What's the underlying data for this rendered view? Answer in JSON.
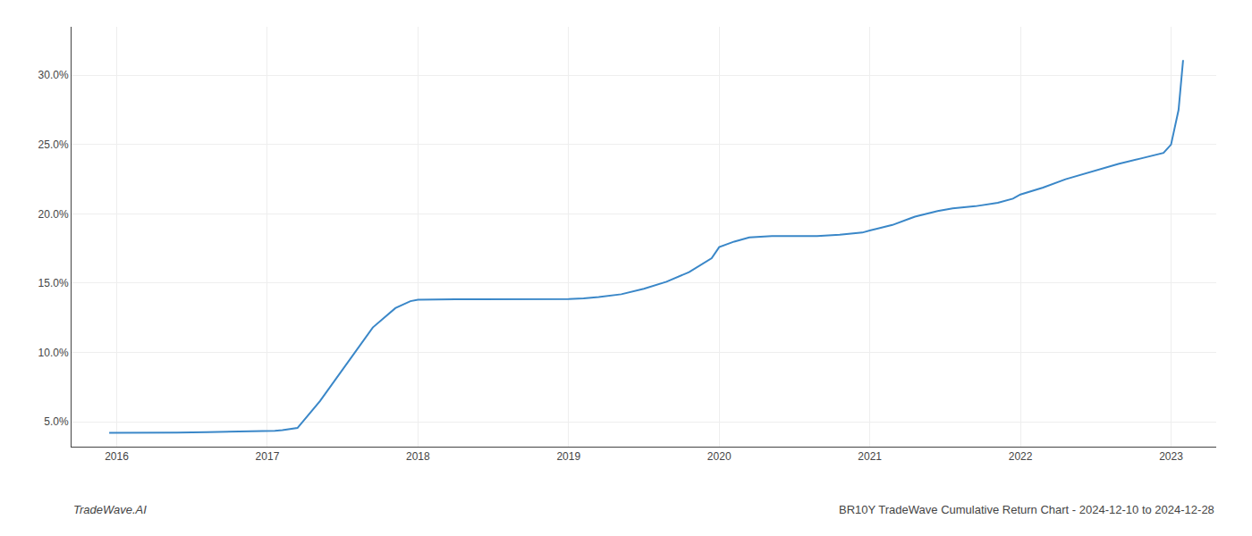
{
  "chart_data": {
    "type": "line",
    "title": "BR10Y TradeWave Cumulative Return Chart - 2024-12-10 to 2024-12-28",
    "annotations": [
      "TradeWave.AI"
    ],
    "x": [
      2015.95,
      2016.0,
      2016.1,
      2016.2,
      2016.4,
      2016.6,
      2016.8,
      2016.95,
      2017.0,
      2017.05,
      2017.1,
      2017.2,
      2017.35,
      2017.55,
      2017.7,
      2017.85,
      2017.95,
      2018.0,
      2018.1,
      2018.15,
      2018.25,
      2018.4,
      2018.6,
      2018.8,
      2018.95,
      2019.0,
      2019.1,
      2019.2,
      2019.35,
      2019.5,
      2019.65,
      2019.8,
      2019.95,
      2020.0,
      2020.1,
      2020.2,
      2020.35,
      2020.5,
      2020.65,
      2020.8,
      2020.95,
      2021.0,
      2021.15,
      2021.3,
      2021.45,
      2021.55,
      2021.7,
      2021.85,
      2021.95,
      2022.0,
      2022.15,
      2022.3,
      2022.5,
      2022.65,
      2022.8,
      2022.95,
      2023.0,
      2023.05,
      2023.08
    ],
    "values": [
      4.2,
      4.2,
      4.2,
      4.2,
      4.22,
      4.25,
      4.28,
      4.3,
      4.32,
      4.35,
      4.4,
      4.55,
      6.5,
      9.5,
      11.8,
      13.2,
      13.7,
      13.8,
      13.82,
      13.83,
      13.83,
      13.83,
      13.83,
      13.83,
      13.83,
      13.85,
      13.9,
      14.0,
      14.2,
      14.6,
      15.1,
      15.8,
      16.8,
      17.6,
      18.0,
      18.3,
      18.4,
      18.4,
      18.4,
      18.5,
      18.65,
      18.8,
      19.2,
      19.8,
      20.2,
      20.4,
      20.55,
      20.8,
      21.1,
      21.4,
      21.9,
      22.5,
      23.1,
      23.6,
      24.0,
      24.4,
      25.0,
      27.5,
      31.1
    ],
    "color": "#3a87c8",
    "xlim": [
      2015.7,
      2023.3
    ],
    "xticks": [
      2016,
      2017,
      2018,
      2019,
      2020,
      2021,
      2022,
      2023
    ],
    "ylim": [
      3.2,
      33.5
    ],
    "yticks": [
      {
        "value": 5.0,
        "label": "5.0%"
      },
      {
        "value": 10.0,
        "label": "10.0%"
      },
      {
        "value": 15.0,
        "label": "15.0%"
      },
      {
        "value": 20.0,
        "label": "20.0%"
      },
      {
        "value": 25.0,
        "label": "25.0%"
      },
      {
        "value": 30.0,
        "label": "30.0%"
      }
    ],
    "grid": true
  }
}
